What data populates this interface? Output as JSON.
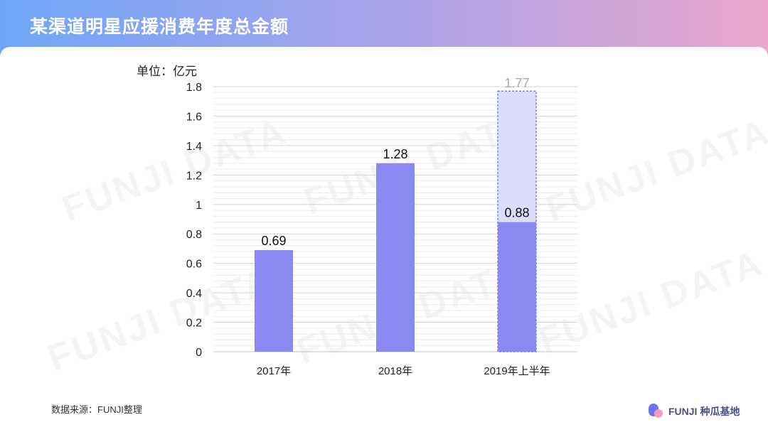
{
  "header": {
    "title": "某渠道明星应援消费年度总金额"
  },
  "watermark_text": "FUNJI DATA",
  "unit_label": "单位：亿元",
  "footer": {
    "source": "数据来源：FUNJI整理",
    "brand_latin": "FUNJI",
    "brand_cn": "种瓜基地"
  },
  "colors": {
    "bar": "#8a89f2",
    "bar_projected": "#dcdcfb",
    "projected_label": "#a9a9b8"
  },
  "chart_data": {
    "type": "bar",
    "title": "某渠道明星应援消费年度总金额",
    "ylabel": "单位：亿元",
    "categories": [
      "2017年",
      "2018年",
      "2019年上半年"
    ],
    "values": [
      0.69,
      1.28,
      0.88
    ],
    "value_labels": [
      "0.69",
      "1.28",
      "0.88"
    ],
    "projected": {
      "category": "2019年上半年",
      "value": 1.77,
      "label": "1.77"
    },
    "ylim": [
      0,
      1.8
    ],
    "yticks": [
      0,
      0.2,
      0.4,
      0.6,
      0.8,
      1,
      1.2,
      1.4,
      1.6,
      1.8
    ],
    "ytick_labels": [
      "0",
      "0.2",
      "0.4",
      "0.6",
      "0.8",
      "1",
      "1.2",
      "1.4",
      "1.6",
      "1.8"
    ],
    "grid": true,
    "legend": "none"
  }
}
